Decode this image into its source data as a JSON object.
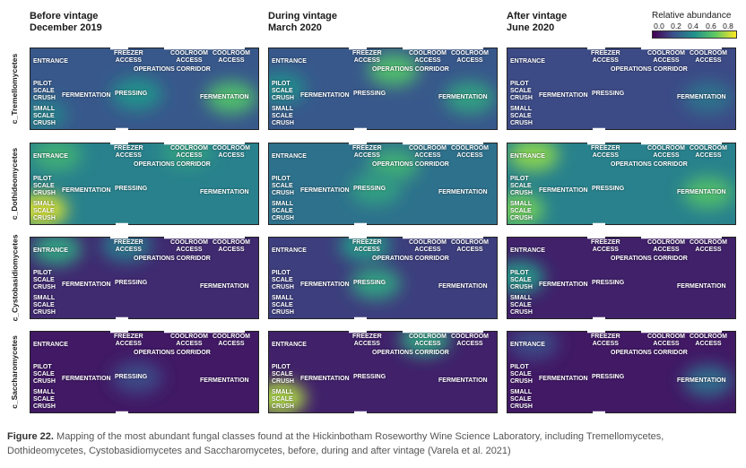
{
  "columns": [
    {
      "line1": "Before vintage",
      "line2": "December 2019"
    },
    {
      "line1": "During vintage",
      "line2": "March 2020"
    },
    {
      "line1": "After vintage",
      "line2": "June 2020"
    }
  ],
  "rows": [
    {
      "label": "c_Tremellomycetes"
    },
    {
      "label": "c_Dothideomycetes"
    },
    {
      "label": "c_Cystobasidiomycetes"
    },
    {
      "label": "c_Saccharomycetes"
    }
  ],
  "zones": {
    "entrance": "ENTRANCE",
    "freezer": "FREEZER\nACCESS",
    "coolroom": "COOLROOM\nACCESS",
    "corridor": "OPERATIONS CORRIDOR",
    "pilot": "PILOT\nSCALE\nCRUSH",
    "fermentation": "FERMENTATION",
    "pressing": "PRESSING",
    "small": "SMALL\nSCALE\nCRUSH"
  },
  "legend": {
    "title": "Relative abundance",
    "ticks": [
      "0.0",
      "0.2",
      "0.4",
      "0.6",
      "0.8"
    ],
    "range": [
      0,
      0.8
    ],
    "colorscale": [
      "#440154",
      "#3b528b",
      "#21918c",
      "#5ec962",
      "#fde725"
    ]
  },
  "caption": {
    "label": "Figure 22.",
    "text": "Mapping of the most abundant fungal classes found at the Hickinbotham Roseworthy Wine Science Laboratory, including Tremellomycetes, Dothideomycetes, Cystobasidiomycetes and Saccharomycetes, before, during and after vintage (Varela et al. 2021)"
  },
  "chart_data": {
    "type": "heatmap",
    "value_range": [
      0,
      0.8
    ],
    "panels": [
      {
        "row": "c_Tremellomycetes",
        "col": "Before vintage",
        "base": 0.22,
        "hotspots": [
          {
            "zone": "small scale crush",
            "value": 0.35
          },
          {
            "zone": "fermentation",
            "value": 0.55
          },
          {
            "zone": "pressing",
            "value": 0.4
          }
        ]
      },
      {
        "row": "c_Tremellomycetes",
        "col": "During vintage",
        "base": 0.22,
        "hotspots": [
          {
            "zone": "operations corridor",
            "value": 0.55
          },
          {
            "zone": "fermentation",
            "value": 0.45
          },
          {
            "zone": "pilot scale crush",
            "value": 0.38
          }
        ]
      },
      {
        "row": "c_Tremellomycetes",
        "col": "After vintage",
        "base": 0.18,
        "hotspots": [
          {
            "zone": "fermentation",
            "value": 0.3
          }
        ]
      },
      {
        "row": "c_Dothideomycetes",
        "col": "Before vintage",
        "base": 0.35,
        "hotspots": [
          {
            "zone": "small scale crush",
            "value": 0.75
          },
          {
            "zone": "entrance",
            "value": 0.5
          },
          {
            "zone": "coolroom access",
            "value": 0.45
          }
        ]
      },
      {
        "row": "c_Dothideomycetes",
        "col": "During vintage",
        "base": 0.3,
        "hotspots": [
          {
            "zone": "operations corridor",
            "value": 0.5
          },
          {
            "zone": "pressing",
            "value": 0.45
          }
        ]
      },
      {
        "row": "c_Dothideomycetes",
        "col": "After vintage",
        "base": 0.35,
        "hotspots": [
          {
            "zone": "entrance",
            "value": 0.65
          },
          {
            "zone": "small scale crush",
            "value": 0.62
          },
          {
            "zone": "fermentation",
            "value": 0.55
          }
        ]
      },
      {
        "row": "c_Cystobasidiomycetes",
        "col": "Before vintage",
        "base": 0.1,
        "hotspots": [
          {
            "zone": "entrance",
            "value": 0.45
          },
          {
            "zone": "freezer access",
            "value": 0.32
          }
        ]
      },
      {
        "row": "c_Cystobasidiomycetes",
        "col": "During vintage",
        "base": 0.15,
        "hotspots": [
          {
            "zone": "freezer access",
            "value": 0.42
          },
          {
            "zone": "pressing",
            "value": 0.45
          }
        ]
      },
      {
        "row": "c_Cystobasidiomycetes",
        "col": "After vintage",
        "base": 0.08,
        "hotspots": [
          {
            "zone": "pilot scale crush",
            "value": 0.42
          }
        ]
      },
      {
        "row": "c_Saccharomycetes",
        "col": "Before vintage",
        "base": 0.06,
        "hotspots": [
          {
            "zone": "pressing",
            "value": 0.18
          }
        ]
      },
      {
        "row": "c_Saccharomycetes",
        "col": "During vintage",
        "base": 0.08,
        "hotspots": [
          {
            "zone": "small scale crush",
            "value": 0.7
          },
          {
            "zone": "coolroom access",
            "value": 0.45
          }
        ]
      },
      {
        "row": "c_Saccharomycetes",
        "col": "After vintage",
        "base": 0.06,
        "hotspots": [
          {
            "zone": "fermentation",
            "value": 0.28
          },
          {
            "zone": "entrance",
            "value": 0.18
          }
        ]
      }
    ]
  }
}
